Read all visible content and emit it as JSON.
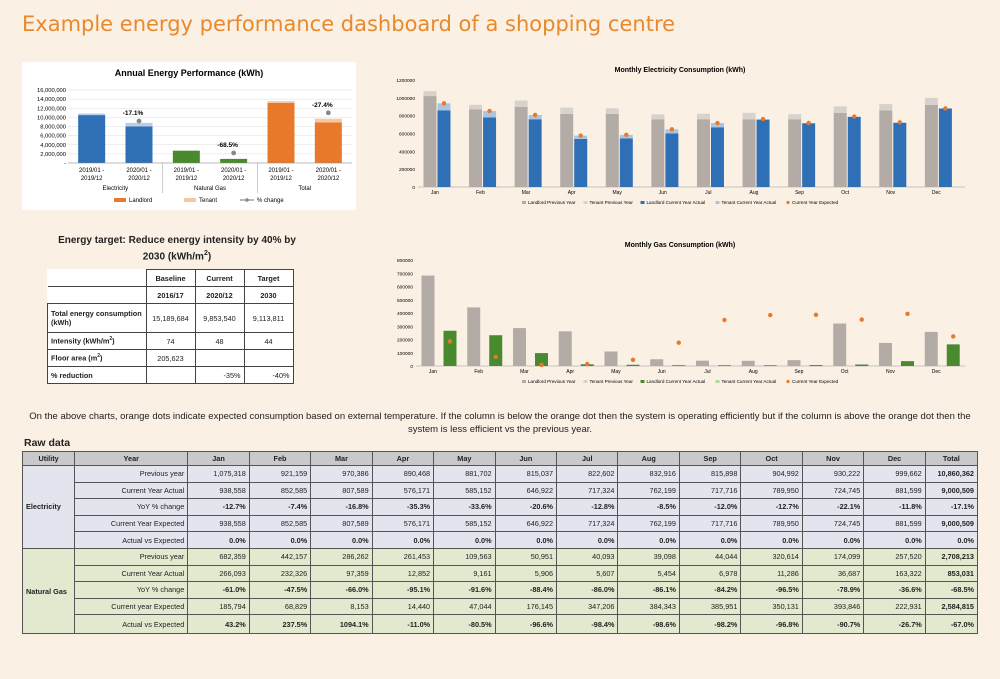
{
  "title": "Example energy performance dashboard of a shopping centre",
  "colors": {
    "landlord": "#e8782a",
    "tenant": "#f5c8a0",
    "change": "#888888",
    "elec_ll_prev": "#b3aca6",
    "elec_t_prev": "#d8d2cc",
    "elec_ll_cur": "#2f6fb5",
    "elec_t_cur": "#a9c5e6",
    "gas_cur": "#4a8a2e",
    "expected": "#e8782a"
  },
  "chart_data": [
    {
      "type": "bar",
      "title": "Annual Energy Performance (kWh)",
      "ylim": [
        0,
        16000000
      ],
      "ytick_labels": [
        "-",
        "2,000,000",
        "4,000,000",
        "6,000,000",
        "8,000,000",
        "10,000,000",
        "12,000,000",
        "14,000,000",
        "16,000,000"
      ],
      "categories": [
        "2019/01 - 2019/12",
        "2020/01 - 2020/12",
        "2019/01 - 2019/12",
        "2020/01 - 2020/12",
        "2019/01 - 2019/12",
        "2020/01 - 2020/12"
      ],
      "groups": [
        "Electricity",
        "Natural Gas",
        "Total"
      ],
      "series": [
        {
          "name": "Landlord",
          "values": [
            10500000,
            8000000,
            2700000,
            900000,
            13200000,
            8900000
          ]
        },
        {
          "name": "Tenant",
          "values": [
            360000,
            800000,
            0,
            0,
            360000,
            800000
          ]
        }
      ],
      "pct_change": [
        {
          "group": "Electricity",
          "label": "-17.1%",
          "value": 9200000
        },
        {
          "group": "Natural Gas",
          "label": "-68.5%",
          "value": 2200000
        },
        {
          "group": "Total",
          "label": "-27.4%",
          "value": 11000000
        }
      ],
      "legend": [
        "Landlord",
        "Tenant",
        "% change"
      ]
    },
    {
      "type": "bar",
      "title": "Monthly Electricity Consumption (kWh)",
      "ylim": [
        0,
        1200000
      ],
      "ytick_labels": [
        "0",
        "200000",
        "400000",
        "600000",
        "800000",
        "1000000",
        "1200000"
      ],
      "categories": [
        "Jan",
        "Feb",
        "Mar",
        "Apr",
        "May",
        "Jun",
        "Jul",
        "Aug",
        "Sep",
        "Oct",
        "Nov",
        "Dec"
      ],
      "series": [
        {
          "name": "Landlord Previous Year",
          "values": [
            1020000,
            870000,
            900000,
            820000,
            820000,
            760000,
            760000,
            760000,
            760000,
            830000,
            860000,
            920000
          ]
        },
        {
          "name": "Tenant Previous Year",
          "values": [
            55000,
            52000,
            70000,
            70000,
            62000,
            55000,
            62000,
            72000,
            56000,
            75000,
            70000,
            80000
          ]
        },
        {
          "name": "Landlord Current Year Actual",
          "values": [
            860000,
            780000,
            760000,
            540000,
            545000,
            600000,
            670000,
            755000,
            715000,
            785000,
            720000,
            880000
          ]
        },
        {
          "name": "Tenant Current Year Actual",
          "values": [
            78000,
            72000,
            48000,
            36000,
            40000,
            47000,
            47000,
            7000,
            2000,
            5000,
            5000,
            2000
          ]
        },
        {
          "name": "Current Year Expected",
          "values": [
            938558,
            852585,
            807589,
            576171,
            585152,
            646922,
            717324,
            762199,
            717716,
            789950,
            724745,
            881599
          ]
        }
      ],
      "legend": [
        "Landlord Previous Year",
        "Tenant Previous Year",
        "Landlord Current Year Actual",
        "Tenant Current Year Actual",
        "Current Year Expected"
      ]
    },
    {
      "type": "bar",
      "title": "Monthly Gas Consumption (kWh)",
      "ylim": [
        0,
        800000
      ],
      "ytick_labels": [
        "0",
        "100000",
        "200000",
        "300000",
        "400000",
        "500000",
        "600000",
        "700000",
        "800000"
      ],
      "categories": [
        "Jan",
        "Feb",
        "Mar",
        "Apr",
        "May",
        "Jun",
        "Jul",
        "Aug",
        "Sep",
        "Oct",
        "Nov",
        "Dec"
      ],
      "series": [
        {
          "name": "Landlord Previous Year",
          "values": [
            682359,
            442157,
            286262,
            261453,
            109563,
            50951,
            40093,
            39098,
            44044,
            320614,
            174099,
            257520
          ]
        },
        {
          "name": "Landlord Current Year Actual",
          "values": [
            266093,
            232326,
            97359,
            12852,
            9161,
            5906,
            5607,
            5454,
            6978,
            11286,
            36687,
            163322
          ]
        },
        {
          "name": "Current Year Expected",
          "values": [
            185794,
            68829,
            8153,
            14440,
            47044,
            176145,
            347206,
            384343,
            385951,
            350131,
            393846,
            222931
          ]
        }
      ],
      "legend": [
        "Landlord Previous Year",
        "Tenant Previous Year",
        "Landlord Current Year Actual",
        "Tenant Current Year Actual",
        "Current Year Expected"
      ]
    }
  ],
  "target": {
    "title_line1": "Energy target: Reduce energy intensity by 40% by",
    "title_line2": "2030 (kWh/m",
    "title_sup": "2",
    "title_end": ")",
    "headers": [
      "Baseline",
      "Current",
      "Target"
    ],
    "subheaders": [
      "2016/17",
      "2020/12",
      "2030"
    ],
    "rows": [
      {
        "label": "Total energy consumption (kWh)",
        "values": [
          "15,189,684",
          "9,853,540",
          "9,113,811"
        ]
      },
      {
        "label": "Intensity (kWh/m",
        "sup": "2",
        "label_end": ")",
        "values": [
          "74",
          "48",
          "44"
        ]
      },
      {
        "label": "Floor area (m",
        "sup": "2",
        "label_end": ")",
        "values": [
          "205,623",
          "",
          ""
        ]
      },
      {
        "label": "% reduction",
        "values": [
          "",
          "-35%",
          "-40%"
        ]
      }
    ]
  },
  "note": "On the above charts, orange dots indicate expected consumption based on external temperature. If the column is below the orange dot then the system is operating efficiently but if the column is above the orange dot then the system is less efficient vs the previous year.",
  "raw_label": "Raw data",
  "raw": {
    "headers": [
      "Utility",
      "Year",
      "Jan",
      "Feb",
      "Mar",
      "Apr",
      "May",
      "Jun",
      "Jul",
      "Aug",
      "Sep",
      "Oct",
      "Nov",
      "Dec",
      "Total"
    ],
    "electricity": {
      "name": "Electricity",
      "rows": [
        {
          "label": "Previous year",
          "bold": false,
          "values": [
            "1,075,318",
            "921,159",
            "970,386",
            "890,468",
            "881,702",
            "815,037",
            "822,602",
            "832,916",
            "815,898",
            "904,992",
            "930,222",
            "999,662",
            "10,860,362"
          ]
        },
        {
          "label": "Current Year Actual",
          "bold": false,
          "values": [
            "938,558",
            "852,585",
            "807,589",
            "576,171",
            "585,152",
            "646,922",
            "717,324",
            "762,199",
            "717,716",
            "789,950",
            "724,745",
            "881,599",
            "9,000,509"
          ]
        },
        {
          "label": "YoY % change",
          "bold": true,
          "values": [
            "-12.7%",
            "-7.4%",
            "-16.8%",
            "-35.3%",
            "-33.6%",
            "-20.6%",
            "-12.8%",
            "-8.5%",
            "-12.0%",
            "-12.7%",
            "-22.1%",
            "-11.8%",
            "-17.1%"
          ]
        },
        {
          "label": "Current Year Expected",
          "bold": false,
          "values": [
            "938,558",
            "852,585",
            "807,589",
            "576,171",
            "585,152",
            "646,922",
            "717,324",
            "762,199",
            "717,716",
            "789,950",
            "724,745",
            "881,599",
            "9,000,509"
          ]
        },
        {
          "label": "Actual vs Expected",
          "bold": true,
          "values": [
            "0.0%",
            "0.0%",
            "0.0%",
            "0.0%",
            "0.0%",
            "0.0%",
            "0.0%",
            "0.0%",
            "0.0%",
            "0.0%",
            "0.0%",
            "0.0%",
            "0.0%"
          ]
        }
      ]
    },
    "gas": {
      "name": "Natural Gas",
      "rows": [
        {
          "label": "Previous year",
          "bold": false,
          "values": [
            "682,359",
            "442,157",
            "286,262",
            "261,453",
            "109,563",
            "50,951",
            "40,093",
            "39,098",
            "44,044",
            "320,614",
            "174,099",
            "257,520",
            "2,708,213"
          ]
        },
        {
          "label": "Current Year Actual",
          "bold": false,
          "values": [
            "266,093",
            "232,326",
            "97,359",
            "12,852",
            "9,161",
            "5,906",
            "5,607",
            "5,454",
            "6,978",
            "11,286",
            "36,687",
            "163,322",
            "853,031"
          ]
        },
        {
          "label": "YoY % change",
          "bold": true,
          "values": [
            "-61.0%",
            "-47.5%",
            "-66.0%",
            "-95.1%",
            "-91.6%",
            "-88.4%",
            "-86.0%",
            "-86.1%",
            "-84.2%",
            "-96.5%",
            "-78.9%",
            "-36.6%",
            "-68.5%"
          ]
        },
        {
          "label": "Current year Expected",
          "bold": false,
          "values": [
            "185,794",
            "68,829",
            "8,153",
            "14,440",
            "47,044",
            "176,145",
            "347,206",
            "384,343",
            "385,951",
            "350,131",
            "393,846",
            "222,931",
            "2,584,815"
          ]
        },
        {
          "label": "Actual vs Expected",
          "bold": true,
          "values": [
            "43.2%",
            "237.5%",
            "1094.1%",
            "-11.0%",
            "-80.5%",
            "-96.6%",
            "-98.4%",
            "-98.6%",
            "-98.2%",
            "-96.8%",
            "-90.7%",
            "-26.7%",
            "-67.0%"
          ]
        }
      ]
    }
  }
}
